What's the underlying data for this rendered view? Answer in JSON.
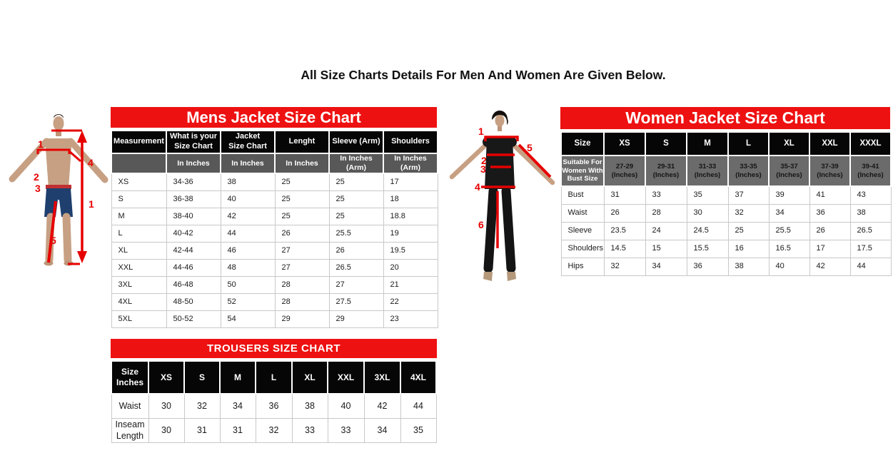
{
  "page_title": "All Size Charts Details For Men And Women Are Given Below.",
  "colors": {
    "banner_red": "#ee1111",
    "header_black": "#060606",
    "mens_units_gray": "#585858",
    "womens_units_gray": "#6b6b6b",
    "annotation_red": "#e60000",
    "cell_border": "#c8c8c8"
  },
  "mens_chart": {
    "title": "Mens Jacket Size Chart",
    "columns": [
      "Measurement",
      "What is your\nSize Chart",
      "Jacket\nSize Chart",
      "Lenght",
      "Sleeve (Arm)",
      "Shoulders"
    ],
    "units_row": [
      "",
      "In Inches",
      "In Inches",
      "In Inches",
      "In Inches (Arm)",
      "In Inches (Arm)"
    ],
    "rows": [
      [
        "XS",
        "34-36",
        "38",
        "25",
        "25",
        "17"
      ],
      [
        "S",
        "36-38",
        "40",
        "25",
        "25",
        "18"
      ],
      [
        "M",
        "38-40",
        "42",
        "25",
        "25",
        "18.8"
      ],
      [
        "L",
        "40-42",
        "44",
        "26",
        "25.5",
        "19"
      ],
      [
        "XL",
        "42-44",
        "46",
        "27",
        "26",
        "19.5"
      ],
      [
        "XXL",
        "44-46",
        "48",
        "27",
        "26.5",
        "20"
      ],
      [
        "3XL",
        "46-48",
        "50",
        "28",
        "27",
        "21"
      ],
      [
        "4XL",
        "48-50",
        "52",
        "28",
        "27.5",
        "22"
      ],
      [
        "5XL",
        "50-52",
        "54",
        "29",
        "29",
        "23"
      ]
    ]
  },
  "womens_chart": {
    "title": "Women Jacket Size Chart",
    "columns": [
      "Size",
      "XS",
      "S",
      "M",
      "L",
      "XL",
      "XXL",
      "XXXL"
    ],
    "units_row": [
      "Suitable For Women With Bust Size",
      "27-29\n(Inches)",
      "29-31\n(Inches)",
      "31-33\n(Inches)",
      "33-35\n(Inches)",
      "35-37\n(Inches)",
      "37-39\n(Inches)",
      "39-41\n(Inches)"
    ],
    "rows": [
      [
        "Bust",
        "31",
        "33",
        "35",
        "37",
        "39",
        "41",
        "43"
      ],
      [
        "Waist",
        "26",
        "28",
        "30",
        "32",
        "34",
        "36",
        "38"
      ],
      [
        "Sleeve",
        "23.5",
        "24",
        "24.5",
        "25",
        "25.5",
        "26",
        "26.5"
      ],
      [
        "Shoulders",
        "14.5",
        "15",
        "15.5",
        "16",
        "16.5",
        "17",
        "17.5"
      ],
      [
        "Hips",
        "32",
        "34",
        "36",
        "38",
        "40",
        "42",
        "44"
      ]
    ]
  },
  "trousers_chart": {
    "title": "TROUSERS SIZE CHART",
    "columns": [
      "Size\nInches",
      "XS",
      "S",
      "M",
      "L",
      "XL",
      "XXL",
      "3XL",
      "4XL"
    ],
    "rows": [
      [
        "Waist",
        "30",
        "32",
        "34",
        "36",
        "38",
        "40",
        "42",
        "44"
      ],
      [
        "Inseam\nLength",
        "30",
        "31",
        "31",
        "32",
        "33",
        "33",
        "34",
        "35"
      ]
    ]
  },
  "figures": {
    "male": {
      "markers": [
        "1",
        "2",
        "3",
        "4",
        "1",
        "5"
      ]
    },
    "female": {
      "markers": [
        "1",
        "2",
        "3",
        "4",
        "5",
        "6"
      ]
    }
  }
}
